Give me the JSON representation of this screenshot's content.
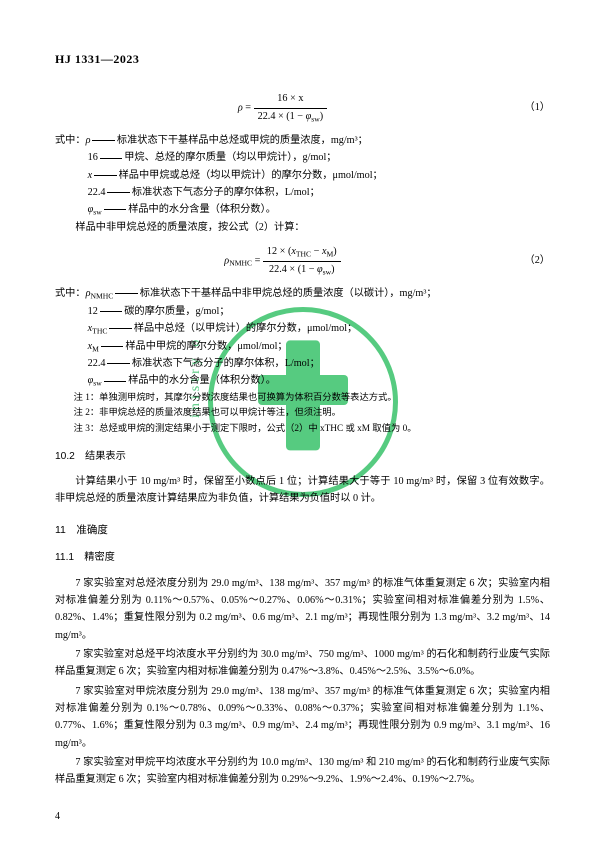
{
  "header": {
    "code": "HJ 1331—2023"
  },
  "formula1": {
    "lhs": "ρ",
    "top": "16 × x",
    "bot_a": "22.4 × (1 − ",
    "bot_sym": "φ",
    "bot_sub": "sw",
    "bot_c": ")",
    "num": "（1）"
  },
  "defs1": {
    "intro": "式中：",
    "items": [
      {
        "sym": "ρ",
        "text": "标准状态下干基样品中总烃或甲烷的质量浓度，mg/m³；"
      },
      {
        "sym": "16",
        "text": "甲烷、总烃的摩尔质量（均以甲烷计），g/mol；"
      },
      {
        "sym": "x",
        "text": "样品中甲烷或总烃（均以甲烷计）的摩尔分数，μmol/mol；"
      },
      {
        "sym": "22.4",
        "text": "标准状态下气态分子的摩尔体积，L/mol；"
      },
      {
        "sym": "φsw",
        "text": "样品中的水分含量（体积分数）。"
      }
    ],
    "tail": "样品中非甲烷总烃的质量浓度，按公式（2）计算："
  },
  "formula2": {
    "lhs_sym": "ρ",
    "lhs_sub": "NMHC",
    "top_a": "12 × (",
    "top_x1": "x",
    "top_s1": "THC",
    "top_mid": " − ",
    "top_x2": "x",
    "top_s2": "M",
    "top_c": ")",
    "bot_a": "22.4 × (1 − ",
    "bot_sym": "φ",
    "bot_sub": "sw",
    "bot_c": ")",
    "num": "（2）"
  },
  "defs2": {
    "intro": "式中：",
    "items": [
      {
        "sym": "ρNMHC",
        "text": "标准状态下干基样品中非甲烷总烃的质量浓度（以碳计），mg/m³；"
      },
      {
        "sym": "12",
        "text": "碳的摩尔质量，g/mol；"
      },
      {
        "sym": "xTHC",
        "text": "样品中总烃（以甲烷计）的摩尔分数，μmol/mol；"
      },
      {
        "sym": "xM",
        "text": "样品中甲烷的摩尔分数，μmol/mol；"
      },
      {
        "sym": "22.4",
        "text": "标准状态下气态分子的摩尔体积，L/mol；"
      },
      {
        "sym": "φsw",
        "text": "样品中的水分含量（体积分数）。"
      }
    ]
  },
  "notes": [
    "注 1：单独测甲烷时，其摩尔分数浓度结果也可换算为体积百分数等表达方式。",
    "注 2：非甲烷总烃的质量浓度结果也可以甲烷计等注，但须注明。",
    "注 3：总烃或甲烷的测定结果小于测定下限时，公式（2）中 xTHC 或 xM 取值为 0。"
  ],
  "sec102": {
    "num": "10.2",
    "title": "结果表示"
  },
  "para102": "计算结果小于 10 mg/m³ 时，保留至小数点后 1 位；计算结果大于等于 10 mg/m³ 时，保留 3 位有效数字。非甲烷总烃的质量浓度计算结果应为非负值，计算结果为负值时以 0 计。",
  "sec11": {
    "num": "11",
    "title": "准确度"
  },
  "sec111": {
    "num": "11.1",
    "title": "精密度"
  },
  "paras11": [
    "7 家实验室对总烃浓度分别为 29.0 mg/m³、138 mg/m³、357 mg/m³ 的标准气体重复测定 6 次；实验室内相对标准偏差分别为 0.11%～0.57%、0.05%～0.27%、0.06%～0.31%；实验室间相对标准偏差分别为 1.5%、0.82%、1.4%；重复性限分别为 0.2 mg/m³、0.6 mg/m³、2.1 mg/m³；再现性限分别为 1.3 mg/m³、3.2 mg/m³、14 mg/m³。",
    "7 家实验室对总烃平均浓度水平分别约为 30.0 mg/m³、750 mg/m³、1000 mg/m³ 的石化和制药行业废气实际样品重复测定 6 次；实验室内相对标准偏差分别为 0.47%～3.8%、0.45%～2.5%、3.5%～6.0%。",
    "7 家实验室对甲烷浓度分别为 29.0 mg/m³、138 mg/m³、357 mg/m³ 的标准气体重复测定 6 次；实验室内相对标准偏差分别为 0.1%～0.78%、0.09%～0.33%、0.08%～0.37%；实验室间相对标准偏差分别为 1.1%、0.77%、1.6%；重复性限分别为 0.3 mg/m³、0.9 mg/m³、2.4 mg/m³；再现性限分别为 0.9 mg/m³、3.1 mg/m³、16 mg/m³。",
    "7 家实验室对甲烷平均浓度水平分别约为 10.0 mg/m³、130 mg/m³ 和 210 mg/m³ 的石化和制药行业废气实际样品重复测定 6 次；实验室内相对标准偏差分别为 0.29%～9.2%、1.9%～2.4%、0.19%～2.7%。"
  ],
  "page_num": "4",
  "watermark_text": "inistry o"
}
